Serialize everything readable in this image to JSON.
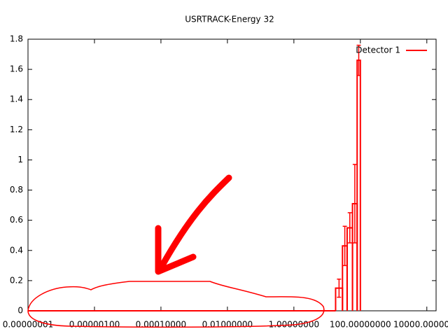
{
  "chart_data": {
    "type": "histogram",
    "title": "USRTRACK-Energy 32",
    "xscale": "log",
    "xlim": [
      1e-08,
      19000
    ],
    "ylim": [
      0,
      1.8
    ],
    "xticks": [
      {
        "value": 1e-08,
        "label": "0.00000001"
      },
      {
        "value": 1e-06,
        "label": "0.00000100"
      },
      {
        "value": 0.0001,
        "label": "0.00010000"
      },
      {
        "value": 0.01,
        "label": "0.01000000"
      },
      {
        "value": 1,
        "label": "1.00000000"
      },
      {
        "value": 100,
        "label": "100.00000000"
      },
      {
        "value": 10000,
        "label": "10000.0000000"
      }
    ],
    "yticks": [
      0,
      0.2,
      0.4,
      0.6,
      0.8,
      1,
      1.2,
      1.4,
      1.6,
      1.8
    ],
    "bins": [
      18,
      29,
      40,
      58,
      80,
      100
    ],
    "series": [
      {
        "name": "Detector 1",
        "color": "#ff0000",
        "values": [
          0.15,
          0.43,
          0.55,
          0.71,
          1.66
        ],
        "errors": [
          0.06,
          0.13,
          0.1,
          0.26,
          0.1
        ]
      }
    ],
    "legend": "top-right"
  }
}
